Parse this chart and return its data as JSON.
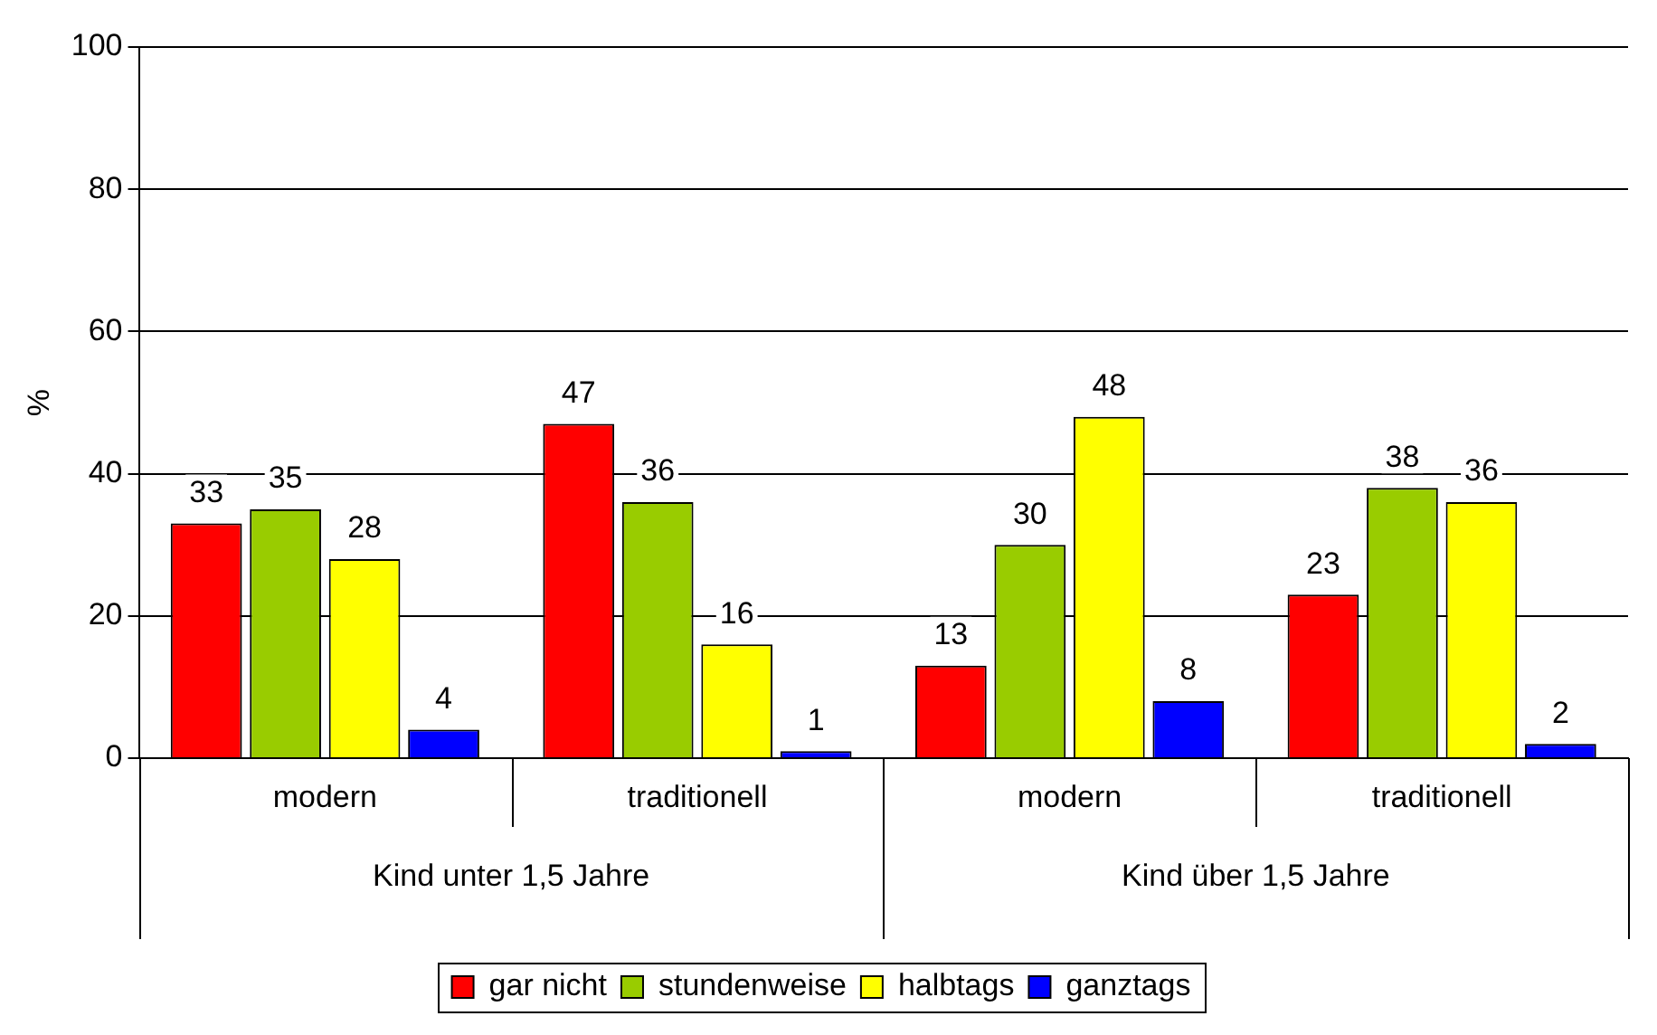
{
  "chart_data": {
    "type": "bar",
    "ylabel": "%",
    "categories": [
      "modern",
      "traditionell",
      "modern",
      "traditionell"
    ],
    "series": [
      {
        "name": "gar nicht",
        "color": "#ff0000",
        "values": [
          33,
          47,
          13,
          23
        ]
      },
      {
        "name": "stundenweise",
        "color": "#99cc00",
        "values": [
          35,
          36,
          30,
          38
        ]
      },
      {
        "name": "halbtags",
        "color": "#ffff00",
        "values": [
          28,
          16,
          48,
          36
        ]
      },
      {
        "name": "ganztags",
        "color": "#0000ff",
        "values": [
          4,
          1,
          8,
          2
        ]
      }
    ],
    "annotations": [
      "Kind unter 1,5 Jahre",
      "Kind über 1,5 Jahre"
    ],
    "ylim": [
      0,
      100
    ],
    "yticks": [
      0,
      20,
      40,
      60,
      80,
      100
    ],
    "grid": "y",
    "legend": "bottom",
    "data_labels": true
  }
}
